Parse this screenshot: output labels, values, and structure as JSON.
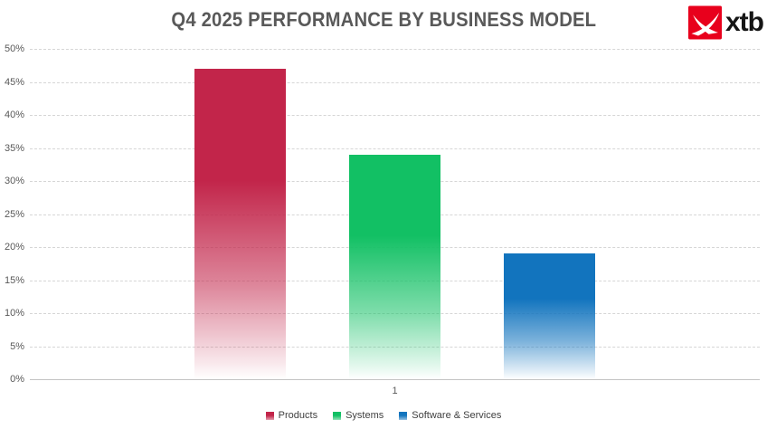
{
  "title": "Q4 2025 PERFORMANCE BY BUSINESS MODEL",
  "logo": {
    "text": "xtb",
    "square_color": "#e8001c",
    "mark": "swallow-x-icon"
  },
  "chart_data": {
    "type": "bar",
    "title": "Q4 2025 PERFORMANCE BY BUSINESS MODEL",
    "categories": [
      "1"
    ],
    "series": [
      {
        "name": "Products",
        "values": [
          47
        ],
        "color": "#c2254a"
      },
      {
        "name": "Systems",
        "values": [
          34
        ],
        "color": "#12c064"
      },
      {
        "name": "Software & Services",
        "values": [
          19
        ],
        "color": "#1274be"
      }
    ],
    "value_suffix": "%",
    "ylim": [
      0,
      50
    ],
    "yticks": [
      0,
      5,
      10,
      15,
      20,
      25,
      30,
      35,
      40,
      45,
      50
    ],
    "ytick_labels": [
      "0%",
      "5%",
      "10%",
      "15%",
      "20%",
      "25%",
      "30%",
      "35%",
      "40%",
      "45%",
      "50%"
    ],
    "xtick_label": "1",
    "grid": "horizontal-dashed",
    "gridline_color": "#d6d6d6",
    "axis_line_color": "#c3c3c3",
    "bar_fill_style": "gradient fade to white at base",
    "legend_position": "bottom-center",
    "legend": [
      "Products",
      "Systems",
      "Software & Services"
    ]
  }
}
